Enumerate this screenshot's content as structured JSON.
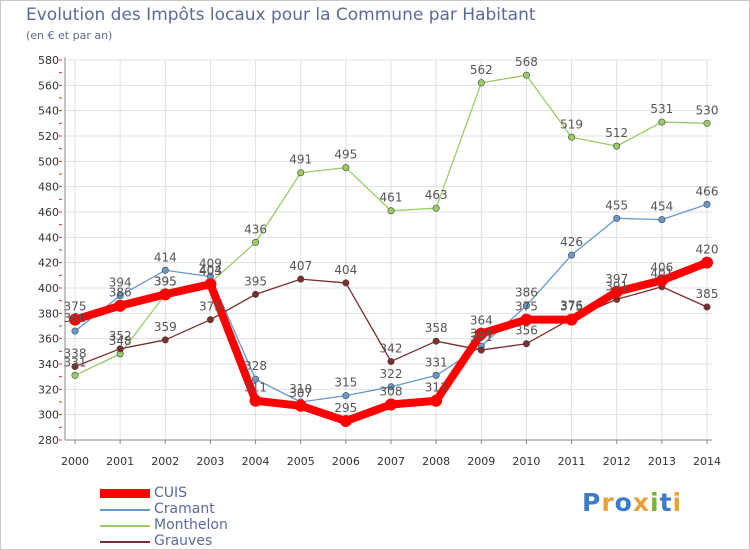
{
  "title": "Evolution des Impôts locaux pour la Commune par Habitant",
  "subtitle": "(en € et par an)",
  "logo": {
    "p": "P",
    "r": "r",
    "o": "o",
    "x": "x",
    "i1": "i",
    "t": "t",
    "i2": "i"
  },
  "chart_data": {
    "type": "line",
    "title": "Evolution des Impôts locaux pour la Commune par Habitant",
    "subtitle": "(en € et par an)",
    "x": [
      2000,
      2001,
      2002,
      2003,
      2004,
      2005,
      2006,
      2007,
      2008,
      2009,
      2010,
      2011,
      2012,
      2013,
      2014
    ],
    "ylim": [
      280,
      580
    ],
    "yticks": [
      280,
      300,
      320,
      340,
      360,
      380,
      400,
      420,
      440,
      460,
      480,
      500,
      520,
      540,
      560,
      580
    ],
    "grid": true,
    "legend": "bottom-left",
    "series": [
      {
        "name": "Monthelon",
        "color": "#99cc66",
        "width": 1.3,
        "values": [
          331,
          348,
          395,
          404,
          436,
          491,
          495,
          461,
          463,
          562,
          568,
          519,
          512,
          531,
          530
        ]
      },
      {
        "name": "Cramant",
        "color": "#6699cc",
        "width": 1.3,
        "values": [
          366,
          394,
          414,
          409,
          328,
          310,
          315,
          322,
          331,
          354,
          386,
          426,
          455,
          454,
          466
        ]
      },
      {
        "name": "Grauves",
        "color": "#7a2e2e",
        "width": 1.3,
        "values": [
          338,
          352,
          359,
          375,
          395,
          407,
          404,
          342,
          358,
          351,
          356,
          376,
          391,
          401,
          385
        ]
      },
      {
        "name": "CUIS",
        "color": "#ff0000",
        "width": 8,
        "values": [
          375,
          386,
          395,
          403,
          311,
          307,
          295,
          308,
          311,
          364,
          375,
          375,
          397,
          406,
          420
        ]
      }
    ],
    "legend_order": [
      "CUIS",
      "Cramant",
      "Monthelon",
      "Grauves"
    ]
  }
}
